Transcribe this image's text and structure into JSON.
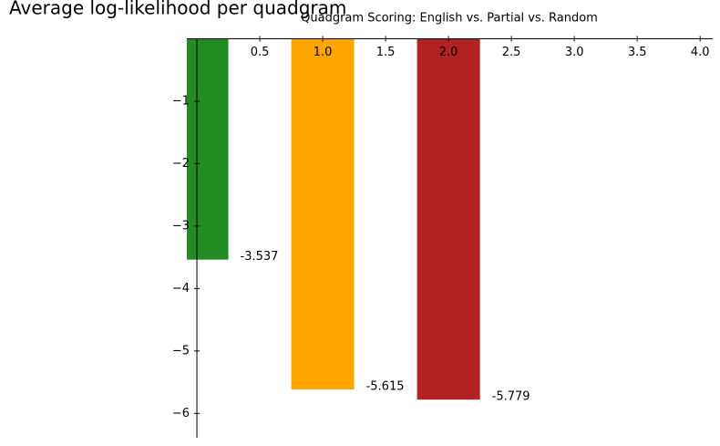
{
  "chart_data": {
    "type": "bar",
    "ylabel": "Average log-likelihood per quadgram",
    "title": "Quadgram Scoring: English vs. Partial vs. Random",
    "x": [
      0,
      1,
      2
    ],
    "bar_width": 0.5,
    "series": [
      {
        "colors": [
          "#228b22",
          "#ffa500",
          "#b22222"
        ],
        "values": [
          -3.537,
          -5.615,
          -5.779
        ]
      }
    ],
    "xlim": [
      -0.08,
      4.1
    ],
    "ylim": [
      -6.39,
      0
    ],
    "xticks": [
      0.5,
      {
        "value": 1.0,
        "label": "1.0"
      },
      1.5,
      {
        "value": 2.0,
        "label": "2.0"
      },
      2.5,
      {
        "value": 3.0,
        "label": "3.0"
      },
      3.5,
      {
        "value": 4.0,
        "label": "4.0"
      }
    ],
    "yticks": [
      {
        "value": -1,
        "label": "−1"
      },
      {
        "value": -2,
        "label": "−2"
      },
      {
        "value": -3,
        "label": "−3"
      },
      {
        "value": -4,
        "label": "−4"
      },
      {
        "value": -5,
        "label": "−5"
      },
      {
        "value": -6,
        "label": "−6"
      }
    ]
  }
}
